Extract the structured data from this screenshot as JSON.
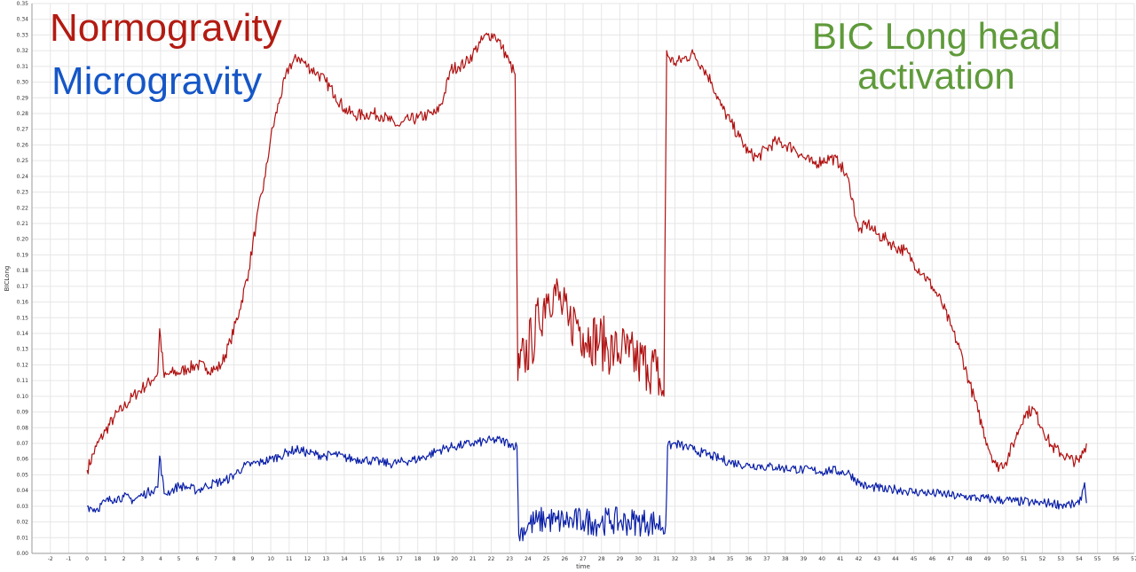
{
  "annotations": {
    "normogravity": "Normogravity",
    "microgravity": "Microgravity",
    "bic_line1": "BIC Long head",
    "bic_line2": "activation"
  },
  "colors": {
    "normogravity": "#b01010",
    "microgravity": "#0a1fa8",
    "normogravity_label": "#b31b12",
    "microgravity_label": "#1556c7",
    "bic_label": "#5f9a3a",
    "grid": "#e6e6e6"
  },
  "chart_data": {
    "type": "line",
    "title": "",
    "xlabel": "time",
    "ylabel": "BICLong",
    "xlim": [
      -3,
      57
    ],
    "ylim": [
      0.0,
      0.35
    ],
    "x_ticks": [
      -2,
      -1,
      0,
      1,
      2,
      3,
      4,
      5,
      6,
      7,
      8,
      9,
      10,
      11,
      12,
      13,
      14,
      15,
      16,
      17,
      18,
      19,
      20,
      21,
      22,
      23,
      24,
      25,
      26,
      27,
      28,
      29,
      30,
      31,
      32,
      33,
      34,
      35,
      36,
      37,
      38,
      39,
      40,
      41,
      42,
      43,
      44,
      45,
      46,
      47,
      48,
      49,
      50,
      51,
      52,
      53,
      54,
      55,
      56,
      57
    ],
    "y_ticks": [
      0.0,
      0.01,
      0.02,
      0.03,
      0.04,
      0.05,
      0.06,
      0.07,
      0.08,
      0.09,
      0.1,
      0.11,
      0.12,
      0.13,
      0.14,
      0.15,
      0.16,
      0.17,
      0.18,
      0.19,
      0.2,
      0.21,
      0.22,
      0.23,
      0.24,
      0.25,
      0.26,
      0.27,
      0.28,
      0.29,
      0.3,
      0.31,
      0.32,
      0.33,
      0.34,
      0.35
    ],
    "grid": true,
    "series": [
      {
        "name": "Normogravity",
        "color": "#b01010",
        "x": [
          0,
          0.5,
          1,
          1.5,
          2,
          2.5,
          3,
          3.5,
          3.85,
          3.95,
          4.2,
          4.6,
          5,
          5.5,
          6,
          6.5,
          7,
          7.3,
          7.8,
          8.3,
          8.8,
          9.2,
          9.7,
          10,
          10.5,
          11,
          11.5,
          12,
          12.5,
          13,
          13.5,
          14,
          14.5,
          15,
          15.5,
          16,
          16.5,
          17,
          17.5,
          18,
          18.5,
          19,
          19.4,
          19.8,
          20.2,
          20.6,
          21,
          21.4,
          21.8,
          22.2,
          22.6,
          23,
          23.3,
          23.45,
          23.55,
          23.8,
          24.2,
          24.6,
          25,
          25.4,
          25.8,
          26.2,
          26.6,
          27,
          27.4,
          27.9,
          28.3,
          28.7,
          29.1,
          29.5,
          30,
          30.5,
          31,
          31.4,
          31.55,
          31.65,
          32,
          32.5,
          33,
          33.5,
          34,
          34.5,
          35,
          35.5,
          36,
          36.5,
          37,
          37.5,
          38,
          38.5,
          39,
          39.5,
          40,
          40.5,
          41,
          41.5,
          42,
          42.5,
          43,
          43.5,
          44,
          44.5,
          45,
          45.5,
          46,
          46.5,
          47,
          47.5,
          48,
          48.5,
          49,
          49.5,
          50,
          50.5,
          51,
          51.5,
          52,
          52.5,
          53,
          53.5,
          54,
          54.4
        ],
        "values": [
          0.053,
          0.068,
          0.078,
          0.087,
          0.093,
          0.1,
          0.105,
          0.11,
          0.115,
          0.143,
          0.112,
          0.115,
          0.115,
          0.118,
          0.12,
          0.118,
          0.117,
          0.12,
          0.135,
          0.155,
          0.18,
          0.21,
          0.24,
          0.265,
          0.29,
          0.31,
          0.316,
          0.31,
          0.306,
          0.3,
          0.292,
          0.283,
          0.279,
          0.279,
          0.28,
          0.279,
          0.275,
          0.272,
          0.276,
          0.277,
          0.279,
          0.28,
          0.29,
          0.308,
          0.31,
          0.312,
          0.318,
          0.325,
          0.33,
          0.33,
          0.322,
          0.312,
          0.305,
          0.11,
          0.118,
          0.125,
          0.135,
          0.148,
          0.165,
          0.168,
          0.158,
          0.145,
          0.15,
          0.14,
          0.138,
          0.135,
          0.132,
          0.128,
          0.13,
          0.125,
          0.122,
          0.12,
          0.116,
          0.1,
          0.32,
          0.316,
          0.312,
          0.315,
          0.318,
          0.31,
          0.3,
          0.285,
          0.275,
          0.265,
          0.255,
          0.252,
          0.258,
          0.262,
          0.26,
          0.258,
          0.252,
          0.248,
          0.25,
          0.252,
          0.248,
          0.235,
          0.205,
          0.21,
          0.203,
          0.2,
          0.195,
          0.193,
          0.185,
          0.178,
          0.17,
          0.16,
          0.145,
          0.13,
          0.11,
          0.09,
          0.07,
          0.055,
          0.058,
          0.072,
          0.088,
          0.092,
          0.08,
          0.068,
          0.064,
          0.06,
          0.058,
          0.07
        ]
      },
      {
        "name": "Microgravity",
        "color": "#0a1fa8",
        "x": [
          0,
          0.5,
          1,
          1.5,
          2,
          2.5,
          3,
          3.5,
          3.85,
          3.95,
          4.2,
          4.6,
          5,
          5.5,
          6,
          6.5,
          7,
          7.5,
          8,
          8.5,
          9,
          9.5,
          10,
          10.5,
          11,
          11.5,
          12,
          12.5,
          13,
          13.5,
          14,
          14.5,
          15,
          15.5,
          16,
          16.5,
          17,
          17.5,
          18,
          18.5,
          19,
          19.5,
          20,
          20.5,
          21,
          21.5,
          22,
          22.5,
          23,
          23.4,
          23.5,
          24,
          24.5,
          25,
          25.5,
          26,
          26.5,
          27,
          27.5,
          28,
          28.5,
          29,
          29.5,
          30,
          30.5,
          31,
          31.5,
          31.6,
          32,
          32.5,
          33,
          33.5,
          34,
          34.5,
          35,
          35.5,
          36,
          36.5,
          37,
          37.5,
          38,
          38.5,
          39,
          39.5,
          40,
          40.5,
          41,
          41.5,
          42,
          42.5,
          43,
          43.5,
          44,
          44.5,
          45,
          45.5,
          46,
          46.5,
          47,
          47.5,
          48,
          48.5,
          49,
          49.5,
          50,
          50.5,
          51,
          51.5,
          52,
          52.5,
          53,
          53.5,
          54,
          54.3,
          54.4
        ],
        "values": [
          0.03,
          0.028,
          0.033,
          0.035,
          0.036,
          0.034,
          0.037,
          0.04,
          0.042,
          0.062,
          0.038,
          0.04,
          0.043,
          0.042,
          0.04,
          0.043,
          0.045,
          0.046,
          0.05,
          0.055,
          0.057,
          0.058,
          0.06,
          0.062,
          0.065,
          0.066,
          0.064,
          0.063,
          0.062,
          0.063,
          0.061,
          0.06,
          0.06,
          0.059,
          0.058,
          0.057,
          0.058,
          0.059,
          0.06,
          0.062,
          0.065,
          0.067,
          0.068,
          0.069,
          0.07,
          0.071,
          0.072,
          0.072,
          0.07,
          0.068,
          0.012,
          0.018,
          0.02,
          0.022,
          0.02,
          0.021,
          0.02,
          0.021,
          0.02,
          0.02,
          0.021,
          0.02,
          0.02,
          0.02,
          0.02,
          0.019,
          0.018,
          0.068,
          0.07,
          0.068,
          0.066,
          0.064,
          0.062,
          0.06,
          0.058,
          0.057,
          0.056,
          0.056,
          0.055,
          0.055,
          0.054,
          0.054,
          0.053,
          0.053,
          0.052,
          0.053,
          0.052,
          0.051,
          0.045,
          0.042,
          0.042,
          0.04,
          0.041,
          0.04,
          0.039,
          0.039,
          0.038,
          0.038,
          0.037,
          0.036,
          0.036,
          0.035,
          0.035,
          0.034,
          0.034,
          0.033,
          0.033,
          0.032,
          0.032,
          0.032,
          0.031,
          0.031,
          0.031,
          0.045,
          0.032
        ]
      }
    ]
  }
}
